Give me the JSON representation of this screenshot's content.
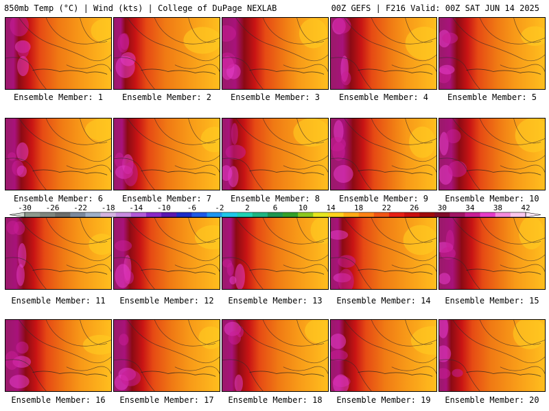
{
  "header": {
    "left_title": "850mb Temp (°C) | Wind (kts) | College of DuPage NEXLAB",
    "right_title": "00Z GEFS | F216 Valid: 00Z SAT JUN 14 2025"
  },
  "colorbar": {
    "tick_labels": [
      "-30",
      "-26",
      "-22",
      "-18",
      "-14",
      "-10",
      "-6",
      "-2",
      "2",
      "6",
      "10",
      "14",
      "18",
      "22",
      "26",
      "30",
      "34",
      "38",
      "42"
    ],
    "colors": [
      "#8e9a8e",
      "#7f867f",
      "#6c6e6c",
      "#7c8a9e",
      "#9fb0c8",
      "#d4b4e0",
      "#c88ce0",
      "#b25ad8",
      "#8a28c8",
      "#5a18b0",
      "#1c2cc8",
      "#1e5ae6",
      "#1e96f0",
      "#1ec8e8",
      "#1ed2b4",
      "#1eb482",
      "#1e9650",
      "#32a028",
      "#8cc81e",
      "#e6e61e",
      "#ffd21e",
      "#ffaa14",
      "#ff8214",
      "#f05514",
      "#e61e14",
      "#c80f0f",
      "#a00a0a",
      "#800a28",
      "#a01464",
      "#c81e96",
      "#e63cc8",
      "#f58cdc",
      "#fac8ee"
    ],
    "colors_note": "colours follow the palette sequence, not value mapping"
  },
  "panels": [
    {
      "label": "Ensemble Member: 1"
    },
    {
      "label": "Ensemble Member: 2"
    },
    {
      "label": "Ensemble Member: 3"
    },
    {
      "label": "Ensemble Member: 4"
    },
    {
      "label": "Ensemble Member: 5"
    },
    {
      "label": "Ensemble Member: 6"
    },
    {
      "label": "Ensemble Member: 7"
    },
    {
      "label": "Ensemble Member: 8"
    },
    {
      "label": "Ensemble Member: 9"
    },
    {
      "label": "Ensemble Member: 10"
    },
    {
      "label": "Ensemble Member: 11"
    },
    {
      "label": "Ensemble Member: 12"
    },
    {
      "label": "Ensemble Member: 13"
    },
    {
      "label": "Ensemble Member: 14"
    },
    {
      "label": "Ensemble Member: 15"
    },
    {
      "label": "Ensemble Member: 16"
    },
    {
      "label": "Ensemble Member: 17"
    },
    {
      "label": "Ensemble Member: 18"
    },
    {
      "label": "Ensemble Member: 19"
    },
    {
      "label": "Ensemble Member: 20"
    }
  ]
}
